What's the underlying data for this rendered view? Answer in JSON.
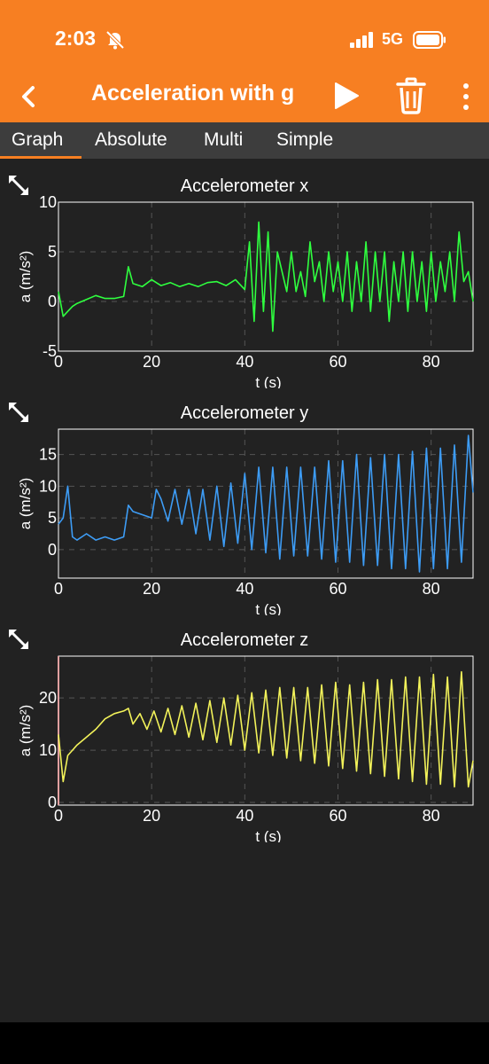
{
  "status_bar": {
    "time": "2:03",
    "network": "5G"
  },
  "app_bar": {
    "title": "Acceleration with g"
  },
  "tabs": [
    {
      "label": "Graph",
      "selected": true
    },
    {
      "label": "Absolute",
      "selected": false
    },
    {
      "label": "Multi",
      "selected": false
    },
    {
      "label": "Simple",
      "selected": false
    }
  ],
  "colors": {
    "accent": "#f77f22",
    "background": "#222222",
    "series_x": "#2fff3f",
    "series_y": "#3d9cf5",
    "series_z": "#f2f25a"
  },
  "chart_data": [
    {
      "type": "line",
      "title": "Accelerometer x",
      "xlabel": "t (s)",
      "ylabel": "a (m/s²)",
      "xlim": [
        0,
        89
      ],
      "ylim": [
        -5,
        10
      ],
      "xticks": [
        "0",
        "20",
        "40",
        "60",
        "80"
      ],
      "yticks": [
        "-5",
        "0",
        "5",
        "10"
      ],
      "series": [
        {
          "values": [
            [
              0,
              1
            ],
            [
              1,
              -1.5
            ],
            [
              2,
              -1
            ],
            [
              3,
              -0.5
            ],
            [
              4,
              -0.2
            ],
            [
              6,
              0.2
            ],
            [
              8,
              0.6
            ],
            [
              10,
              0.3
            ],
            [
              12,
              0.3
            ],
            [
              14,
              0.5
            ],
            [
              14.5,
              2
            ],
            [
              15,
              3.5
            ],
            [
              16,
              1.8
            ],
            [
              18,
              1.5
            ],
            [
              20,
              2.2
            ],
            [
              22,
              1.6
            ],
            [
              24,
              1.9
            ],
            [
              26,
              1.5
            ],
            [
              28,
              1.8
            ],
            [
              30,
              1.5
            ],
            [
              32,
              1.9
            ],
            [
              34,
              2
            ],
            [
              36,
              1.6
            ],
            [
              38,
              2.2
            ],
            [
              40,
              1.2
            ],
            [
              41,
              6
            ],
            [
              42,
              -2
            ],
            [
              43,
              8
            ],
            [
              44,
              -1
            ],
            [
              45,
              7
            ],
            [
              46,
              -3
            ],
            [
              47,
              5
            ],
            [
              48,
              3
            ],
            [
              49,
              1
            ],
            [
              50,
              5
            ],
            [
              51,
              1
            ],
            [
              52,
              3
            ],
            [
              53,
              0.5
            ],
            [
              54,
              6
            ],
            [
              55,
              2
            ],
            [
              56,
              4
            ],
            [
              57,
              0
            ],
            [
              58,
              5
            ],
            [
              59,
              1
            ],
            [
              60,
              4
            ],
            [
              61,
              0
            ],
            [
              62,
              5
            ],
            [
              63,
              -1
            ],
            [
              64,
              4
            ],
            [
              65,
              0
            ],
            [
              66,
              6
            ],
            [
              67,
              -1
            ],
            [
              68,
              5
            ],
            [
              69,
              0
            ],
            [
              70,
              5
            ],
            [
              71,
              -2
            ],
            [
              72,
              4
            ],
            [
              73,
              0
            ],
            [
              74,
              5
            ],
            [
              75,
              -1
            ],
            [
              76,
              5
            ],
            [
              77,
              0
            ],
            [
              78,
              4
            ],
            [
              79,
              -1
            ],
            [
              80,
              5
            ],
            [
              81,
              0
            ],
            [
              82,
              4
            ],
            [
              83,
              1
            ],
            [
              84,
              5
            ],
            [
              85,
              0
            ],
            [
              86,
              7
            ],
            [
              87,
              2
            ],
            [
              88,
              3
            ],
            [
              89,
              0
            ]
          ]
        }
      ]
    },
    {
      "type": "line",
      "title": "Accelerometer y",
      "xlabel": "t (s)",
      "ylabel": "a (m/s²)",
      "xlim": [
        0,
        89
      ],
      "ylim": [
        -4.5,
        19
      ],
      "xticks": [
        "0",
        "20",
        "40",
        "60",
        "80"
      ],
      "yticks": [
        "0",
        "5",
        "10",
        "15"
      ],
      "series": [
        {
          "values": [
            [
              0,
              4
            ],
            [
              1,
              5
            ],
            [
              2,
              10
            ],
            [
              3,
              2
            ],
            [
              4,
              1.5
            ],
            [
              6,
              2.5
            ],
            [
              8,
              1.5
            ],
            [
              10,
              2
            ],
            [
              12,
              1.5
            ],
            [
              14,
              2
            ],
            [
              15,
              7
            ],
            [
              16,
              6
            ],
            [
              18,
              5.5
            ],
            [
              20,
              5
            ],
            [
              21,
              9.5
            ],
            [
              22,
              8
            ],
            [
              23.5,
              4.5
            ],
            [
              25,
              9.5
            ],
            [
              26.5,
              4
            ],
            [
              28,
              9.5
            ],
            [
              29.5,
              2.5
            ],
            [
              31,
              9.5
            ],
            [
              32.5,
              1.5
            ],
            [
              34,
              10
            ],
            [
              35.5,
              0.5
            ],
            [
              37,
              10.5
            ],
            [
              38.5,
              1
            ],
            [
              40,
              12
            ],
            [
              41.5,
              0
            ],
            [
              43,
              13
            ],
            [
              44.5,
              -0.5
            ],
            [
              46,
              13
            ],
            [
              47.5,
              -1.5
            ],
            [
              49,
              13
            ],
            [
              50.5,
              -1
            ],
            [
              52,
              13
            ],
            [
              53.5,
              -1
            ],
            [
              55,
              13
            ],
            [
              56.5,
              -1.5
            ],
            [
              58,
              14
            ],
            [
              59.5,
              -2
            ],
            [
              61,
              14
            ],
            [
              62.5,
              -2
            ],
            [
              64,
              15
            ],
            [
              65.5,
              -2.5
            ],
            [
              67,
              14.5
            ],
            [
              68.5,
              -2.5
            ],
            [
              70,
              15
            ],
            [
              71.5,
              -3
            ],
            [
              73,
              15
            ],
            [
              74.5,
              -3
            ],
            [
              76,
              15.5
            ],
            [
              77.5,
              -3.5
            ],
            [
              79,
              16
            ],
            [
              80.5,
              -3
            ],
            [
              82,
              16
            ],
            [
              83.5,
              -3
            ],
            [
              85,
              16.5
            ],
            [
              86.5,
              -2
            ],
            [
              88,
              18
            ],
            [
              89,
              9
            ]
          ]
        }
      ]
    },
    {
      "type": "line",
      "title": "Accelerometer z",
      "xlabel": "t (s)",
      "ylabel": "a (m/s²)",
      "xlim": [
        0,
        89
      ],
      "ylim": [
        -0.5,
        28
      ],
      "xticks": [
        "0",
        "20",
        "40",
        "60",
        "80"
      ],
      "yticks": [
        "0",
        "10",
        "20"
      ],
      "series": [
        {
          "values": [
            [
              0,
              13
            ],
            [
              1,
              4
            ],
            [
              2,
              9
            ],
            [
              3,
              10
            ],
            [
              4,
              11
            ],
            [
              6,
              12.5
            ],
            [
              8,
              14
            ],
            [
              10,
              16
            ],
            [
              12,
              17
            ],
            [
              14,
              17.5
            ],
            [
              15,
              18
            ],
            [
              16,
              15
            ],
            [
              17.5,
              17
            ],
            [
              19,
              14
            ],
            [
              20.5,
              17.5
            ],
            [
              22,
              13.5
            ],
            [
              23.5,
              18
            ],
            [
              25,
              13
            ],
            [
              26.5,
              18.5
            ],
            [
              28,
              12.5
            ],
            [
              29.5,
              19
            ],
            [
              31,
              12
            ],
            [
              32.5,
              19.5
            ],
            [
              34,
              11.5
            ],
            [
              35.5,
              20
            ],
            [
              37,
              11
            ],
            [
              38.5,
              20.5
            ],
            [
              40,
              10
            ],
            [
              41.5,
              21
            ],
            [
              43,
              9.5
            ],
            [
              44.5,
              21.5
            ],
            [
              46,
              9
            ],
            [
              47.5,
              22
            ],
            [
              49,
              8.5
            ],
            [
              50.5,
              22
            ],
            [
              52,
              8
            ],
            [
              53.5,
              22
            ],
            [
              55,
              7.5
            ],
            [
              56.5,
              22.5
            ],
            [
              58,
              7
            ],
            [
              59.5,
              23
            ],
            [
              61,
              6.5
            ],
            [
              62.5,
              22.5
            ],
            [
              64,
              6
            ],
            [
              65.5,
              23
            ],
            [
              67,
              5.5
            ],
            [
              68.5,
              23.5
            ],
            [
              70,
              5
            ],
            [
              71.5,
              23.5
            ],
            [
              73,
              4.5
            ],
            [
              74.5,
              24
            ],
            [
              76,
              4
            ],
            [
              77.5,
              24
            ],
            [
              79,
              3.5
            ],
            [
              80.5,
              24.5
            ],
            [
              82,
              3.5
            ],
            [
              83.5,
              24
            ],
            [
              85,
              3
            ],
            [
              86.5,
              25
            ],
            [
              88,
              3
            ],
            [
              89,
              8
            ]
          ]
        }
      ]
    }
  ]
}
